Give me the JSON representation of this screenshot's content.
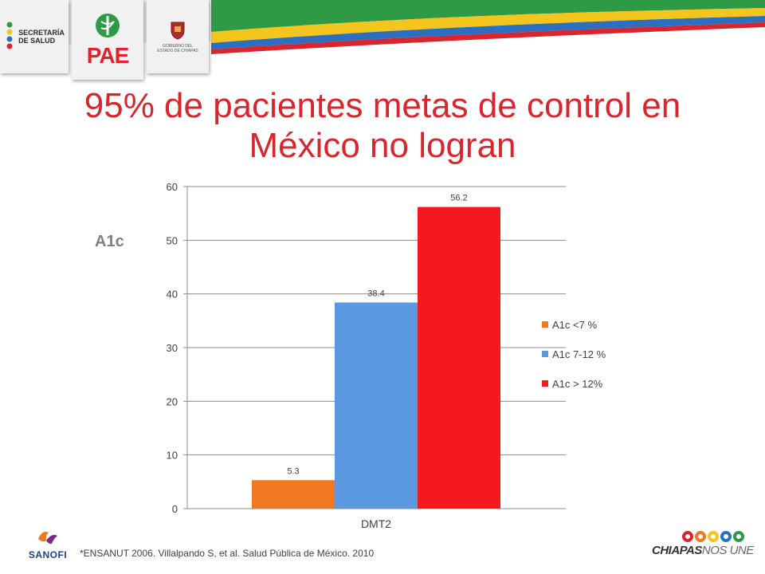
{
  "colors": {
    "title": "#d9262e",
    "series": [
      "#f07820",
      "#5b98e0",
      "#f4191e"
    ]
  },
  "header": {
    "secretaria_line1": "SECRETARÍA",
    "secretaria_line2": "DE SALUD",
    "pae": "PAE",
    "gobierno_line1": "GOBIERNO DEL",
    "gobierno_line2": "ESTADO DE CHIAPAS"
  },
  "slide": {
    "title_line1": "95% de pacientes metas de control en",
    "title_line2": "México no logran",
    "side_label": "A1c",
    "reference": "*ENSANUT 2006. Villalpando S, et al. Salud Pública de México. 2010"
  },
  "footer": {
    "sanofi": "SANOFI",
    "chiapas_bold": "CHIAPAS",
    "chiapas_light": "NOS UNE"
  },
  "chart_data": {
    "type": "bar",
    "title": "",
    "xlabel": "",
    "ylabel": "",
    "categories": [
      "DMT2"
    ],
    "series": [
      {
        "name": "A1c <7 %",
        "values": [
          5.3
        ],
        "label": "5.3"
      },
      {
        "name": "A1c 7-12 %",
        "values": [
          38.4
        ],
        "label": "38.4"
      },
      {
        "name": "A1c > 12%",
        "values": [
          56.2
        ],
        "label": "56.2"
      }
    ],
    "ylim": [
      0,
      60
    ],
    "yticks": [
      "0",
      "10",
      "20",
      "30",
      "40",
      "50",
      "60"
    ],
    "grid": true,
    "legend": "right"
  }
}
